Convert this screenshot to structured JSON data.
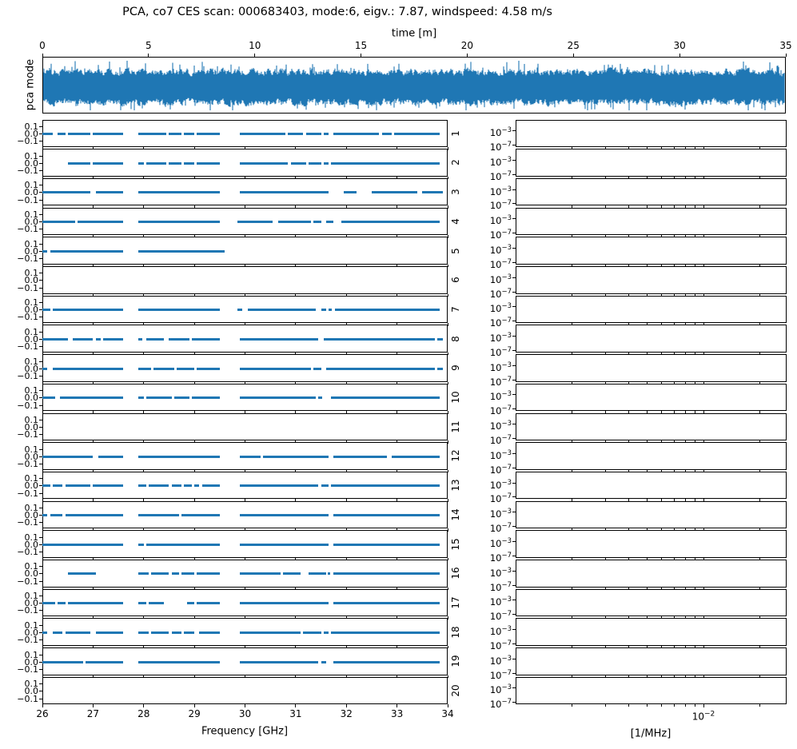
{
  "title": "PCA, co7 CES scan: 000683403, mode:6, eigv.: 7.87, windspeed: 4.58 m/s",
  "colors": {
    "line": "#1f77b4",
    "axis": "#000000",
    "background": "#ffffff"
  },
  "top_plot": {
    "xlabel": "time [m]",
    "ylabel": "pca mode",
    "xlim": [
      0,
      35
    ],
    "xticks": [
      0,
      5,
      10,
      15,
      20,
      25,
      30,
      35
    ]
  },
  "freq_column": {
    "xlabel": "Frequency [GHz]",
    "xlim": [
      26,
      34
    ],
    "xticks": [
      26,
      27,
      28,
      29,
      30,
      31,
      32,
      33,
      34
    ],
    "ytick_labels": [
      "0.1",
      "0.0",
      "−0.1"
    ],
    "panel_labels": [
      "1",
      "2",
      "3",
      "4",
      "5",
      "6",
      "7",
      "8",
      "9",
      "10",
      "11",
      "12",
      "13",
      "14",
      "15",
      "16",
      "17",
      "18",
      "19",
      "20"
    ]
  },
  "psd_column": {
    "xlabel": "[1/MHz]",
    "xscale": "log",
    "xlim": [
      0.001,
      0.0277
    ],
    "major_tick": {
      "value": 0.01,
      "base": "10",
      "exp": "−2"
    },
    "minor_ticks": [
      0.002,
      0.003,
      0.004,
      0.005,
      0.006,
      0.007,
      0.008,
      0.009,
      0.02
    ],
    "ytick_labels": [
      {
        "base": "10",
        "exp": "−3"
      },
      {
        "base": "10",
        "exp": "−7"
      }
    ]
  },
  "chart_data": [
    {
      "type": "line",
      "name": "pca-mode-timeseries",
      "title": "",
      "xlabel": "time [m]",
      "ylabel": "pca mode",
      "xlim": [
        0,
        35
      ],
      "xticks": [
        0,
        5,
        10,
        15,
        20,
        25,
        30,
        35
      ],
      "description": "dense zero-mean noise band filling nearly the full axis height",
      "color": "#1f77b4"
    },
    {
      "type": "line",
      "name": "pca-mode-vs-frequency-grid",
      "xlabel": "Frequency [GHz]",
      "xlim": [
        26,
        34
      ],
      "ylim": [
        -0.15,
        0.15
      ],
      "yticks": [
        0.1,
        0.0,
        -0.1
      ],
      "value_level": 0.0,
      "color": "#1f77b4",
      "panels": [
        {
          "label": "1",
          "segments_ghz": [
            [
              26.0,
              26.2
            ],
            [
              26.3,
              26.45
            ],
            [
              26.5,
              26.95
            ],
            [
              27.0,
              27.6
            ],
            [
              27.9,
              28.45
            ],
            [
              28.5,
              28.75
            ],
            [
              28.8,
              29.0
            ],
            [
              29.05,
              29.5
            ],
            [
              29.9,
              30.8
            ],
            [
              30.85,
              31.15
            ],
            [
              31.2,
              31.5
            ],
            [
              31.55,
              31.65
            ],
            [
              31.75,
              32.65
            ],
            [
              32.7,
              32.9
            ],
            [
              32.95,
              33.85
            ]
          ]
        },
        {
          "label": "2",
          "segments_ghz": [
            [
              26.5,
              26.95
            ],
            [
              27.0,
              27.6
            ],
            [
              27.9,
              28.0
            ],
            [
              28.05,
              28.45
            ],
            [
              28.5,
              28.75
            ],
            [
              28.8,
              29.0
            ],
            [
              29.05,
              29.5
            ],
            [
              29.9,
              30.85
            ],
            [
              30.9,
              31.2
            ],
            [
              31.25,
              31.5
            ],
            [
              31.55,
              31.65
            ],
            [
              31.7,
              33.85
            ]
          ]
        },
        {
          "label": "3",
          "segments_ghz": [
            [
              26.0,
              26.95
            ],
            [
              27.05,
              27.6
            ],
            [
              27.9,
              29.5
            ],
            [
              29.9,
              31.65
            ],
            [
              31.95,
              32.2
            ],
            [
              32.5,
              33.4
            ],
            [
              33.5,
              33.9
            ]
          ]
        },
        {
          "label": "4",
          "segments_ghz": [
            [
              26.0,
              26.65
            ],
            [
              26.7,
              27.6
            ],
            [
              27.9,
              29.5
            ],
            [
              29.85,
              30.55
            ],
            [
              30.65,
              31.3
            ],
            [
              31.35,
              31.5
            ],
            [
              31.6,
              31.75
            ],
            [
              31.9,
              33.85
            ]
          ]
        },
        {
          "label": "5",
          "segments_ghz": [
            [
              26.0,
              26.1
            ],
            [
              26.15,
              27.6
            ],
            [
              27.9,
              29.6
            ]
          ]
        },
        {
          "label": "6",
          "segments_ghz": []
        },
        {
          "label": "7",
          "segments_ghz": [
            [
              26.0,
              26.15
            ],
            [
              26.2,
              27.6
            ],
            [
              27.9,
              29.5
            ],
            [
              29.85,
              29.95
            ],
            [
              30.05,
              31.4
            ],
            [
              31.5,
              31.6
            ],
            [
              31.65,
              31.72
            ],
            [
              31.78,
              33.85
            ]
          ]
        },
        {
          "label": "8",
          "segments_ghz": [
            [
              26.0,
              26.5
            ],
            [
              26.6,
              27.0
            ],
            [
              27.05,
              27.15
            ],
            [
              27.2,
              27.6
            ],
            [
              27.9,
              27.98
            ],
            [
              28.05,
              28.4
            ],
            [
              28.5,
              28.9
            ],
            [
              28.95,
              29.5
            ],
            [
              29.9,
              31.45
            ],
            [
              31.55,
              33.75
            ],
            [
              33.8,
              33.9
            ]
          ]
        },
        {
          "label": "9",
          "segments_ghz": [
            [
              26.0,
              26.1
            ],
            [
              26.2,
              27.6
            ],
            [
              27.9,
              28.15
            ],
            [
              28.2,
              28.6
            ],
            [
              28.65,
              29.0
            ],
            [
              29.05,
              29.5
            ],
            [
              29.9,
              31.3
            ],
            [
              31.35,
              31.5
            ],
            [
              31.6,
              33.75
            ],
            [
              33.8,
              33.9
            ]
          ]
        },
        {
          "label": "10",
          "segments_ghz": [
            [
              26.0,
              26.25
            ],
            [
              26.35,
              27.6
            ],
            [
              27.9,
              28.0
            ],
            [
              28.05,
              28.55
            ],
            [
              28.6,
              28.9
            ],
            [
              28.95,
              29.5
            ],
            [
              29.9,
              31.4
            ],
            [
              31.45,
              31.52
            ],
            [
              31.7,
              33.85
            ]
          ]
        },
        {
          "label": "11",
          "segments_ghz": []
        },
        {
          "label": "12",
          "segments_ghz": [
            [
              26.0,
              27.0
            ],
            [
              27.1,
              27.6
            ],
            [
              27.9,
              29.5
            ],
            [
              29.9,
              30.3
            ],
            [
              30.35,
              31.65
            ],
            [
              31.75,
              32.8
            ],
            [
              32.9,
              33.85
            ]
          ]
        },
        {
          "label": "13",
          "segments_ghz": [
            [
              26.0,
              26.15
            ],
            [
              26.2,
              26.4
            ],
            [
              26.45,
              26.95
            ],
            [
              27.0,
              27.6
            ],
            [
              27.9,
              28.05
            ],
            [
              28.1,
              28.5
            ],
            [
              28.55,
              28.75
            ],
            [
              28.8,
              28.95
            ],
            [
              29.0,
              29.1
            ],
            [
              29.15,
              29.5
            ],
            [
              29.9,
              31.45
            ],
            [
              31.5,
              31.65
            ],
            [
              31.7,
              33.85
            ]
          ]
        },
        {
          "label": "14",
          "segments_ghz": [
            [
              26.0,
              26.1
            ],
            [
              26.15,
              26.4
            ],
            [
              26.45,
              27.6
            ],
            [
              27.9,
              28.7
            ],
            [
              28.75,
              29.5
            ],
            [
              29.9,
              31.65
            ],
            [
              31.75,
              33.85
            ]
          ]
        },
        {
          "label": "15",
          "segments_ghz": [
            [
              26.0,
              27.6
            ],
            [
              27.9,
              28.0
            ],
            [
              28.05,
              29.5
            ],
            [
              29.9,
              31.65
            ],
            [
              31.75,
              33.85
            ]
          ]
        },
        {
          "label": "16",
          "segments_ghz": [
            [
              26.5,
              27.05
            ],
            [
              27.9,
              28.1
            ],
            [
              28.15,
              28.5
            ],
            [
              28.55,
              28.7
            ],
            [
              28.75,
              29.0
            ],
            [
              29.05,
              29.5
            ],
            [
              29.9,
              30.7
            ],
            [
              30.75,
              31.1
            ],
            [
              31.25,
              31.6
            ],
            [
              31.63,
              31.68
            ],
            [
              31.75,
              33.85
            ]
          ]
        },
        {
          "label": "17",
          "segments_ghz": [
            [
              26.0,
              26.25
            ],
            [
              26.3,
              26.45
            ],
            [
              26.5,
              27.6
            ],
            [
              27.9,
              28.05
            ],
            [
              28.1,
              28.4
            ],
            [
              28.85,
              29.0
            ],
            [
              29.05,
              29.5
            ],
            [
              29.9,
              31.65
            ],
            [
              31.75,
              33.85
            ]
          ]
        },
        {
          "label": "18",
          "segments_ghz": [
            [
              26.0,
              26.1
            ],
            [
              26.2,
              26.4
            ],
            [
              26.45,
              26.95
            ],
            [
              27.05,
              27.6
            ],
            [
              27.9,
              28.1
            ],
            [
              28.15,
              28.5
            ],
            [
              28.55,
              28.75
            ],
            [
              28.8,
              29.0
            ],
            [
              29.1,
              29.5
            ],
            [
              29.9,
              31.1
            ],
            [
              31.15,
              31.5
            ],
            [
              31.55,
              31.65
            ],
            [
              31.7,
              33.85
            ]
          ]
        },
        {
          "label": "19",
          "segments_ghz": [
            [
              26.0,
              26.8
            ],
            [
              26.85,
              27.6
            ],
            [
              27.9,
              29.5
            ],
            [
              29.9,
              31.45
            ],
            [
              31.5,
              31.6
            ],
            [
              31.75,
              33.85
            ]
          ]
        },
        {
          "label": "20",
          "segments_ghz": []
        }
      ]
    },
    {
      "type": "line",
      "name": "psd-grid",
      "xlabel": "[1/MHz]",
      "xscale": "log",
      "xlim": [
        0.001,
        0.0277
      ],
      "ytick_labels": [
        "10⁻³",
        "10⁻⁷"
      ],
      "panels_empty": true,
      "panel_count": 20
    }
  ]
}
